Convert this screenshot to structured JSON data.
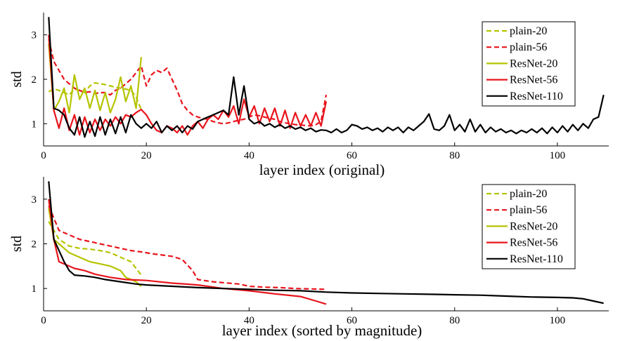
{
  "chart_data": [
    {
      "type": "line",
      "xlabel": "layer index (original)",
      "ylabel": "std",
      "xlim": [
        0,
        110
      ],
      "ylim": [
        0.5,
        3.5
      ],
      "xticks": [
        0,
        20,
        40,
        60,
        80,
        100
      ],
      "yticks": [
        1,
        2,
        3
      ],
      "legend_position": "top-right",
      "series": [
        {
          "name": "plain-20",
          "color": "#b5c400",
          "style": "dashed",
          "x": [
            1,
            2,
            3,
            4,
            5,
            6,
            7,
            8,
            9,
            10,
            11,
            12,
            13,
            14,
            15,
            16,
            17,
            18,
            19
          ],
          "y": [
            1.72,
            1.78,
            1.75,
            1.7,
            1.65,
            1.78,
            1.75,
            1.7,
            1.85,
            1.92,
            1.9,
            1.88,
            1.85,
            1.82,
            1.8,
            1.78,
            1.75,
            1.6,
            1.32
          ]
        },
        {
          "name": "plain-56",
          "color": "#e8141c",
          "style": "dashed",
          "x": [
            1,
            2,
            3,
            4,
            5,
            6,
            7,
            8,
            9,
            10,
            11,
            12,
            13,
            14,
            15,
            16,
            17,
            18,
            19,
            20,
            21,
            22,
            23,
            24,
            25,
            26,
            27,
            28,
            29,
            30,
            31,
            32,
            33,
            34,
            35,
            36,
            37,
            38,
            39,
            40,
            41,
            42,
            43,
            44,
            45,
            46,
            47,
            48,
            49,
            50,
            51,
            52,
            53,
            54,
            55
          ],
          "y": [
            2.9,
            2.4,
            2.2,
            2.0,
            1.9,
            1.8,
            1.75,
            1.7,
            1.72,
            1.68,
            1.7,
            1.7,
            1.65,
            1.75,
            1.8,
            1.9,
            2.0,
            2.15,
            2.3,
            1.85,
            2.1,
            2.2,
            2.15,
            2.25,
            2.0,
            1.75,
            1.45,
            1.3,
            1.2,
            1.15,
            1.12,
            1.1,
            1.05,
            1.02,
            1.0,
            1.02,
            1.05,
            1.08,
            1.1,
            1.15,
            1.2,
            1.18,
            1.15,
            1.12,
            1.1,
            1.05,
            1.02,
            1.0,
            0.98,
            0.97,
            0.96,
            0.95,
            0.98,
            1.05,
            1.65
          ]
        },
        {
          "name": "ResNet-20",
          "color": "#b5c400",
          "style": "solid",
          "x": [
            1,
            2,
            3,
            4,
            5,
            6,
            7,
            8,
            9,
            10,
            11,
            12,
            13,
            14,
            15,
            16,
            17,
            18,
            19
          ],
          "y": [
            2.8,
            1.3,
            1.5,
            1.8,
            1.25,
            2.1,
            1.55,
            1.8,
            1.35,
            1.75,
            1.3,
            1.7,
            1.25,
            1.55,
            2.05,
            1.5,
            1.85,
            1.35,
            2.5
          ]
        },
        {
          "name": "ResNet-56",
          "color": "#e8141c",
          "style": "solid",
          "x": [
            1,
            2,
            3,
            4,
            5,
            6,
            7,
            8,
            9,
            10,
            11,
            12,
            13,
            14,
            15,
            16,
            17,
            18,
            19,
            20,
            21,
            22,
            23,
            24,
            25,
            26,
            27,
            28,
            29,
            30,
            31,
            32,
            33,
            34,
            35,
            36,
            37,
            38,
            39,
            40,
            41,
            42,
            43,
            44,
            45,
            46,
            47,
            48,
            49,
            50,
            51,
            52,
            53,
            54,
            55
          ],
          "y": [
            3.0,
            1.3,
            0.9,
            1.35,
            0.85,
            1.2,
            0.75,
            1.15,
            0.8,
            1.1,
            0.85,
            1.1,
            0.95,
            1.15,
            1.0,
            1.2,
            1.15,
            1.25,
            1.32,
            1.2,
            1.0,
            0.85,
            0.8,
            0.95,
            0.9,
            0.8,
            0.95,
            0.75,
            0.95,
            1.05,
            0.9,
            1.1,
            1.2,
            1.1,
            1.3,
            1.15,
            1.4,
            1.0,
            1.55,
            1.15,
            1.4,
            1.0,
            1.35,
            1.05,
            1.35,
            0.95,
            1.3,
            0.9,
            1.25,
            0.95,
            1.2,
            0.95,
            1.25,
            0.95,
            1.5
          ]
        },
        {
          "name": "ResNet-110",
          "color": "#000000",
          "style": "solid",
          "x": [
            1,
            2,
            3,
            4,
            5,
            6,
            7,
            8,
            9,
            10,
            11,
            12,
            13,
            14,
            15,
            16,
            17,
            18,
            19,
            20,
            21,
            22,
            23,
            24,
            25,
            26,
            27,
            28,
            29,
            30,
            31,
            32,
            33,
            34,
            35,
            36,
            37,
            38,
            39,
            40,
            41,
            42,
            43,
            44,
            45,
            46,
            47,
            48,
            49,
            50,
            51,
            52,
            53,
            54,
            55,
            56,
            57,
            58,
            59,
            60,
            61,
            62,
            63,
            64,
            65,
            66,
            67,
            68,
            69,
            70,
            71,
            72,
            73,
            74,
            75,
            76,
            77,
            78,
            79,
            80,
            81,
            82,
            83,
            84,
            85,
            86,
            87,
            88,
            89,
            90,
            91,
            92,
            93,
            94,
            95,
            96,
            97,
            98,
            99,
            100,
            101,
            102,
            103,
            104,
            105,
            106,
            107,
            108,
            109
          ],
          "y": [
            3.4,
            1.35,
            1.3,
            1.2,
            0.9,
            0.75,
            1.15,
            0.7,
            1.05,
            0.72,
            1.15,
            0.75,
            1.1,
            0.78,
            1.15,
            0.8,
            1.2,
            1.0,
            0.9,
            1.0,
            0.9,
            1.05,
            0.8,
            0.95,
            0.85,
            0.95,
            0.8,
            0.95,
            0.88,
            1.05,
            1.1,
            1.15,
            1.2,
            1.25,
            1.3,
            1.2,
            2.05,
            1.2,
            1.85,
            1.1,
            1.0,
            1.05,
            0.95,
            1.0,
            0.92,
            0.98,
            0.9,
            0.95,
            0.88,
            0.92,
            0.85,
            0.9,
            0.82,
            0.86,
            0.85,
            0.8,
            0.88,
            0.8,
            0.85,
            0.98,
            0.95,
            0.88,
            0.92,
            0.85,
            0.9,
            0.82,
            0.92,
            0.85,
            0.92,
            0.8,
            0.92,
            0.85,
            0.95,
            1.05,
            1.22,
            0.88,
            0.85,
            0.95,
            1.2,
            0.85,
            0.98,
            0.82,
            1.1,
            0.82,
            0.98,
            0.8,
            0.92,
            0.82,
            0.88,
            0.8,
            0.85,
            0.78,
            0.85,
            0.8,
            0.88,
            0.8,
            0.9,
            0.78,
            0.92,
            0.8,
            0.95,
            0.82,
            0.98,
            0.85,
            1.0,
            0.9,
            1.1,
            1.15,
            1.65
          ]
        }
      ]
    },
    {
      "type": "line",
      "xlabel": "layer index (sorted by magnitude)",
      "ylabel": "std",
      "xlim": [
        0,
        110
      ],
      "ylim": [
        0.5,
        3.5
      ],
      "xticks": [
        0,
        20,
        40,
        60,
        80,
        100
      ],
      "yticks": [
        1,
        2,
        3
      ],
      "legend_position": "top-right",
      "series": [
        {
          "name": "plain-20",
          "color": "#b5c400",
          "style": "dashed",
          "x": [
            1,
            3,
            5,
            7,
            9,
            11,
            13,
            15,
            17,
            19
          ],
          "y": [
            2.5,
            2.1,
            1.95,
            1.9,
            1.88,
            1.85,
            1.8,
            1.7,
            1.6,
            1.3
          ]
        },
        {
          "name": "plain-56",
          "color": "#e8141c",
          "style": "dashed",
          "x": [
            1,
            3,
            5,
            7,
            9,
            11,
            13,
            15,
            17,
            19,
            21,
            23,
            25,
            27,
            29,
            30,
            33,
            36,
            38,
            40,
            43,
            46,
            49,
            52,
            55
          ],
          "y": [
            2.85,
            2.3,
            2.2,
            2.1,
            2.05,
            2.0,
            1.95,
            1.9,
            1.85,
            1.82,
            1.78,
            1.75,
            1.72,
            1.65,
            1.4,
            1.2,
            1.15,
            1.12,
            1.1,
            1.05,
            1.03,
            1.02,
            1.0,
            0.99,
            0.98
          ]
        },
        {
          "name": "ResNet-20",
          "color": "#b5c400",
          "style": "solid",
          "x": [
            1,
            2,
            3,
            5,
            7,
            9,
            11,
            13,
            15,
            16,
            17,
            18,
            19
          ],
          "y": [
            2.8,
            2.1,
            2.0,
            1.8,
            1.7,
            1.6,
            1.55,
            1.5,
            1.4,
            1.25,
            1.2,
            1.15,
            1.05
          ]
        },
        {
          "name": "ResNet-56",
          "color": "#e8141c",
          "style": "solid",
          "x": [
            1,
            2,
            3,
            4,
            6,
            8,
            10,
            13,
            16,
            20,
            25,
            30,
            35,
            40,
            45,
            50,
            53,
            55
          ],
          "y": [
            3.0,
            2.1,
            1.6,
            1.55,
            1.45,
            1.4,
            1.32,
            1.25,
            1.2,
            1.18,
            1.12,
            1.08,
            1.0,
            0.95,
            0.88,
            0.82,
            0.72,
            0.65
          ]
        },
        {
          "name": "ResNet-110",
          "color": "#000000",
          "style": "solid",
          "x": [
            1,
            2,
            3,
            4,
            5,
            6,
            8,
            10,
            12,
            15,
            18,
            20,
            25,
            30,
            35,
            40,
            45,
            50,
            55,
            60,
            65,
            70,
            75,
            80,
            85,
            90,
            95,
            100,
            103,
            105,
            107,
            109
          ],
          "y": [
            3.4,
            2.1,
            1.85,
            1.6,
            1.4,
            1.3,
            1.28,
            1.25,
            1.2,
            1.15,
            1.1,
            1.08,
            1.05,
            1.02,
            1.0,
            0.98,
            0.96,
            0.95,
            0.92,
            0.9,
            0.89,
            0.88,
            0.87,
            0.86,
            0.85,
            0.83,
            0.81,
            0.8,
            0.79,
            0.77,
            0.72,
            0.67
          ]
        }
      ]
    }
  ]
}
